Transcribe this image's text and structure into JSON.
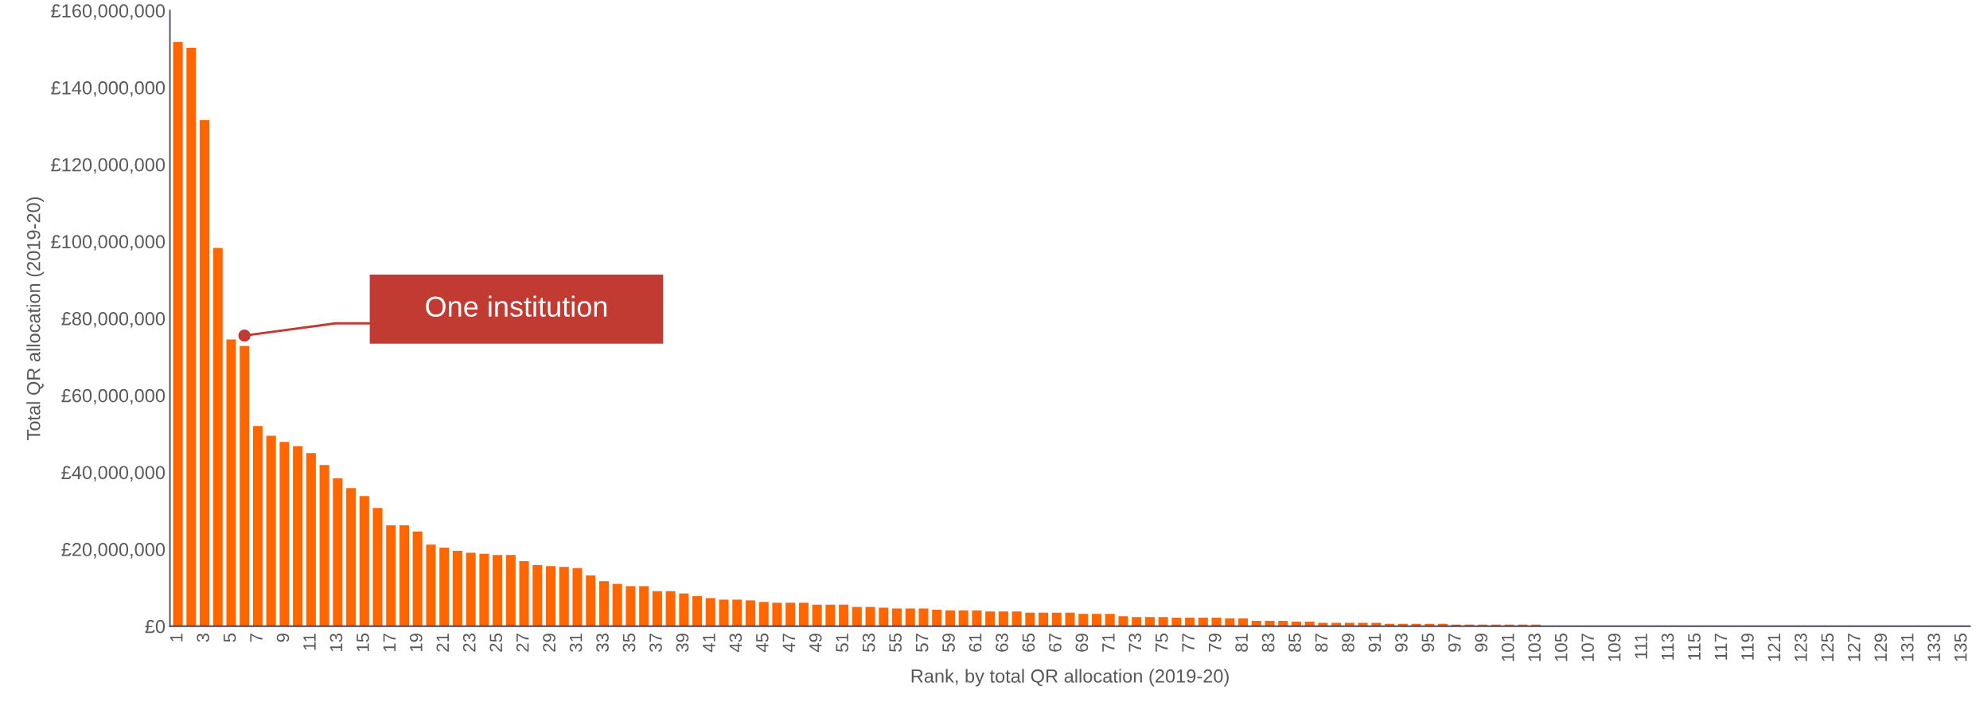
{
  "chart_data": {
    "type": "bar",
    "ylabel": "Total QR allocation (2019-20)",
    "xlabel": "Rank, by total QR allocation (2019-20)",
    "categories": [
      "1",
      null,
      "3",
      null,
      "5",
      null,
      "7",
      null,
      "9",
      null,
      "11",
      null,
      "13",
      null,
      "15",
      null,
      "17",
      null,
      "19",
      null,
      "21",
      null,
      "23",
      null,
      "25",
      null,
      "27",
      null,
      "29",
      null,
      "31",
      null,
      "33",
      null,
      "35",
      null,
      "37",
      null,
      "39",
      null,
      "41",
      null,
      "43",
      null,
      "45",
      null,
      "47",
      null,
      "49",
      null,
      "51",
      null,
      "53",
      null,
      "55",
      null,
      "57",
      null,
      "59",
      null,
      "61",
      null,
      "63",
      null,
      "65",
      null,
      "67",
      null,
      "69",
      null,
      "71",
      null,
      "73",
      null,
      "75",
      null,
      "77",
      null,
      "79",
      null,
      "81",
      null,
      "83",
      null,
      "85",
      null,
      "87",
      null,
      "89",
      null,
      "91",
      null,
      "93",
      null,
      "95",
      null,
      "97",
      null,
      "99",
      null,
      "101",
      null,
      "103",
      null,
      "105",
      null,
      "107",
      null,
      "109",
      null,
      "111",
      null,
      "113",
      null,
      "115",
      null,
      "117",
      null,
      "119",
      null,
      "121",
      null,
      "123",
      null,
      "125",
      null,
      "127",
      null,
      "129",
      null,
      "131",
      null,
      "133",
      null,
      "135"
    ],
    "values": [
      151800000,
      150300000,
      131500000,
      98300000,
      74500000,
      72800000,
      52000000,
      49500000,
      47900000,
      46800000,
      45000000,
      41900000,
      38400000,
      35900000,
      33800000,
      30700000,
      26200000,
      26200000,
      24600000,
      21200000,
      20400000,
      19600000,
      19100000,
      18800000,
      18500000,
      18500000,
      16900000,
      15900000,
      15600000,
      15400000,
      15100000,
      13200000,
      11700000,
      11000000,
      10400000,
      10400000,
      9100000,
      9100000,
      8500000,
      7800000,
      7300000,
      6900000,
      6900000,
      6700000,
      6300000,
      6100000,
      6100000,
      6100000,
      5600000,
      5600000,
      5600000,
      5000000,
      5000000,
      4800000,
      4600000,
      4600000,
      4600000,
      4300000,
      4100000,
      4100000,
      4100000,
      3800000,
      3800000,
      3800000,
      3500000,
      3500000,
      3500000,
      3500000,
      3200000,
      3200000,
      3200000,
      2600000,
      2400000,
      2400000,
      2400000,
      2200000,
      2200000,
      2200000,
      2200000,
      2000000,
      2000000,
      1400000,
      1400000,
      1400000,
      1200000,
      1200000,
      900000,
      900000,
      900000,
      900000,
      900000,
      600000,
      600000,
      600000,
      600000,
      600000,
      400000,
      400000,
      400000,
      400000,
      400000,
      400000,
      400000,
      0,
      0,
      0,
      0,
      0,
      0,
      0,
      0,
      0,
      0,
      0,
      0,
      0,
      0,
      0,
      0,
      0,
      0,
      0,
      0,
      0,
      0,
      0,
      0,
      0,
      0,
      0,
      0,
      0,
      0,
      0,
      0
    ],
    "color": "#ff6600",
    "ylim": [
      0,
      160000000
    ],
    "yticks": [
      {
        "value": 0,
        "label": "£0"
      },
      {
        "value": 20000000,
        "label": "£20,000,000"
      },
      {
        "value": 40000000,
        "label": "£40,000,000"
      },
      {
        "value": 60000000,
        "label": "£60,000,000"
      },
      {
        "value": 80000000,
        "label": "£80,000,000"
      },
      {
        "value": 100000000,
        "label": "£100,000,000"
      },
      {
        "value": 120000000,
        "label": "£120,000,000"
      },
      {
        "value": 140000000,
        "label": "£140,000,000"
      },
      {
        "value": 160000000,
        "label": "£160,000,000"
      }
    ],
    "grid": false,
    "legend": false,
    "annotations": [
      "One institution"
    ]
  }
}
